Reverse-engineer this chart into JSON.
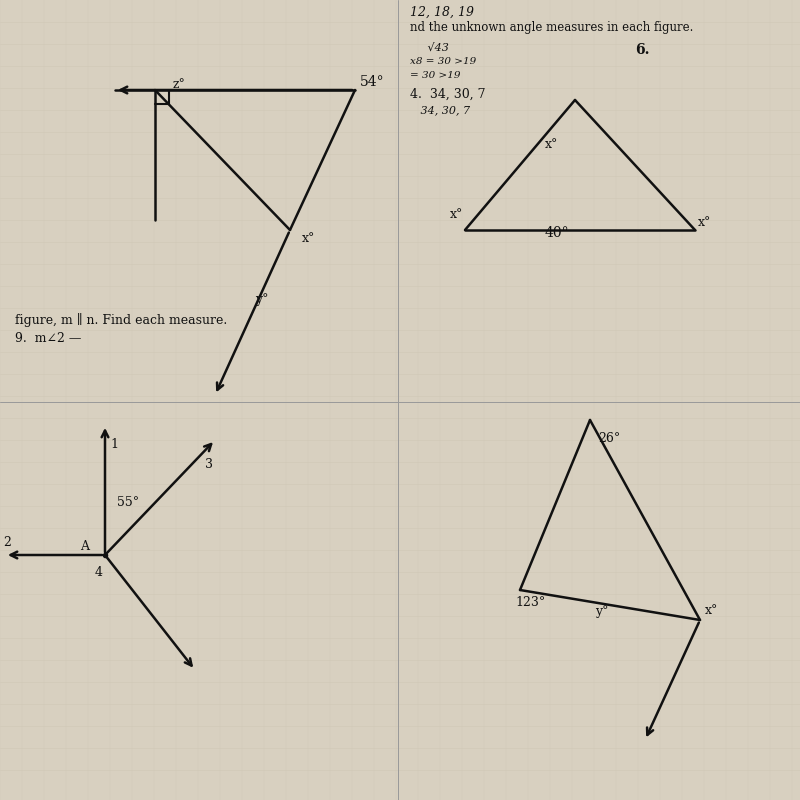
{
  "bg_color": "#d8d0c0",
  "paper_color": "#e8e2d5",
  "line_color": "#111111",
  "text_color": "#111111",
  "faint_color": "#c8bfae",
  "fig5_angle1": "54°",
  "fig5_z": "z°",
  "fig5_x": "x°",
  "fig5_y": "y°",
  "fig6_angle": "40°",
  "fig6_x_top": "x°",
  "fig6_x_bot": "x°",
  "fig7_angle1": "26°",
  "fig7_angle2": "123°",
  "fig7_x": "x°",
  "fig7_y": "y°",
  "fig8_angle": "55°",
  "text_right1": "12, 18, 19",
  "text_right2": "nd the unknown angle measures in each figure.",
  "text_right3": "4.  34, 30, 7",
  "text_right4": "6.",
  "text_left1": "figure, m ∥ n. Find each measure.",
  "text_left2": "9.  m∠2 —",
  "label_3": "3",
  "label_4": "4",
  "label_A": "A",
  "label_2": "2"
}
